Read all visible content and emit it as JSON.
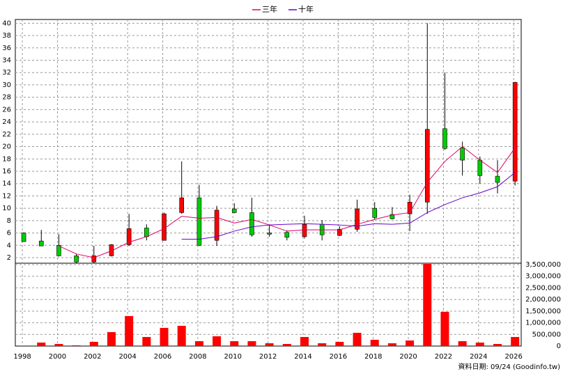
{
  "chart_data": [
    {
      "type": "candlestick",
      "x": [
        1998,
        1999,
        2000,
        2001,
        2002,
        2003,
        2004,
        2005,
        2006,
        2007,
        2008,
        2009,
        2010,
        2011,
        2012,
        2013,
        2014,
        2015,
        2016,
        2017,
        2018,
        2019,
        2020,
        2021,
        2022,
        2023,
        2024,
        2025,
        2026
      ],
      "open": [
        6.0,
        4.7,
        4.0,
        2.3,
        1.3,
        2.3,
        4.1,
        6.8,
        4.8,
        9.3,
        11.7,
        4.8,
        9.9,
        9.3,
        6.0,
        6.1,
        5.4,
        7.4,
        5.6,
        6.6,
        10.0,
        9.0,
        9.1,
        11.0,
        22.9,
        19.8,
        17.8,
        15.2,
        14.4
      ],
      "high": [
        6.1,
        6.5,
        5.8,
        2.6,
        3.9,
        4.2,
        9.1,
        7.4,
        9.3,
        17.6,
        13.8,
        10.4,
        10.8,
        11.7,
        7.4,
        6.4,
        8.8,
        8.1,
        7.1,
        11.4,
        11.0,
        10.2,
        12.2,
        40.0,
        32.0,
        20.8,
        18.4,
        17.8,
        30.5
      ],
      "low": [
        4.6,
        3.9,
        2.2,
        1.1,
        1.1,
        2.2,
        3.9,
        4.8,
        4.8,
        9.1,
        3.9,
        3.9,
        9.2,
        5.4,
        5.4,
        4.8,
        5.1,
        4.8,
        5.5,
        6.2,
        8.2,
        8.2,
        6.3,
        9.1,
        19.5,
        15.3,
        14.0,
        12.4,
        13.7
      ],
      "close": [
        4.6,
        3.9,
        2.3,
        1.3,
        2.3,
        4.1,
        6.7,
        5.4,
        9.1,
        11.7,
        4.0,
        9.7,
        9.3,
        5.7,
        5.8,
        5.3,
        7.4,
        5.7,
        6.6,
        9.9,
        8.5,
        8.3,
        11.0,
        22.8,
        19.7,
        17.8,
        15.3,
        14.2,
        30.4
      ],
      "up_color": "#ff0000",
      "down_color": "#00cc00",
      "series": [
        {
          "name": "三年",
          "color": "#dd0066",
          "values": [
            null,
            null,
            3.9,
            2.6,
            2.0,
            3.1,
            4.5,
            5.4,
            6.7,
            8.7,
            8.4,
            8.5,
            7.6,
            8.2,
            7.3,
            6.3,
            6.5,
            6.5,
            6.5,
            7.4,
            8.2,
            8.9,
            9.3,
            14.2,
            17.6,
            20.0,
            17.8,
            15.8,
            19.8
          ]
        },
        {
          "name": "十年",
          "color": "#6600cc",
          "values": [
            null,
            null,
            null,
            null,
            null,
            null,
            null,
            null,
            null,
            5.0,
            5.0,
            5.4,
            6.3,
            7.0,
            7.3,
            7.4,
            7.5,
            7.4,
            7.3,
            7.1,
            7.5,
            7.4,
            7.6,
            9.3,
            10.6,
            11.7,
            12.5,
            13.5,
            15.8
          ]
        }
      ],
      "ylim": [
        1.1,
        40.6
      ],
      "yticks": [
        2,
        4,
        6,
        8,
        10,
        12,
        14,
        16,
        18,
        20,
        22,
        24,
        26,
        28,
        30,
        32,
        34,
        36,
        38,
        40
      ],
      "grid": true
    },
    {
      "type": "bar",
      "x": [
        1998,
        1999,
        2000,
        2001,
        2002,
        2003,
        2004,
        2005,
        2006,
        2007,
        2008,
        2009,
        2010,
        2011,
        2012,
        2013,
        2014,
        2015,
        2016,
        2017,
        2018,
        2019,
        2020,
        2021,
        2022,
        2023,
        2024,
        2025,
        2026
      ],
      "values": [
        0,
        150000,
        90000,
        30000,
        180000,
        600000,
        1290000,
        390000,
        780000,
        870000,
        210000,
        420000,
        210000,
        210000,
        120000,
        90000,
        390000,
        120000,
        180000,
        570000,
        270000,
        120000,
        240000,
        3530000,
        1470000,
        210000,
        150000,
        90000,
        390000
      ],
      "color": "#ff0000",
      "xlim": [
        1997.6,
        2026.43
      ],
      "xticks": [
        1998,
        2000,
        2002,
        2004,
        2006,
        2008,
        2010,
        2012,
        2014,
        2016,
        2018,
        2020,
        2022,
        2024,
        2026
      ],
      "ylim": [
        0,
        3560000
      ],
      "yticks": [
        0,
        {
          "value": 500000,
          "label": "500,000"
        },
        {
          "value": 1000000,
          "label": "1,000,000"
        },
        {
          "value": 1500000,
          "label": "1,500,000"
        },
        {
          "value": 2000000,
          "label": "2,000,000"
        },
        {
          "value": 2500000,
          "label": "2,500,000"
        },
        {
          "value": 3000000,
          "label": "3,000,000"
        },
        {
          "value": 3500000,
          "label": "3,500,000"
        }
      ],
      "grid": true
    }
  ],
  "footer": "資料日期: 09/24  (Goodinfo.tw)"
}
